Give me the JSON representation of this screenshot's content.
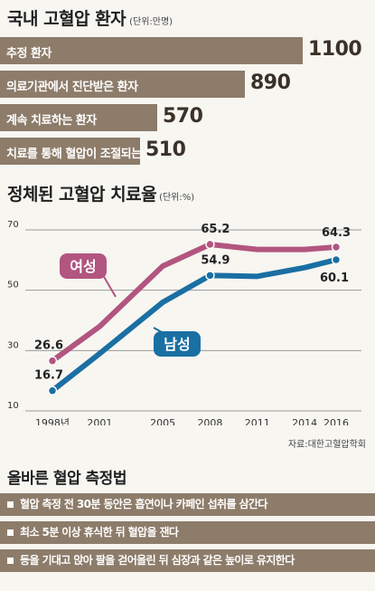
{
  "section1": {
    "title": "국내 고혈압 환자",
    "unit": "(단위:만명)",
    "bars": [
      {
        "label": "추정 환자",
        "value": 1100
      },
      {
        "label": "의료기관에서 진단받은 환자",
        "value": 890
      },
      {
        "label": "계속 치료하는 환자",
        "value": 570
      },
      {
        "label": "치료를 통해 혈압이 조절되는 환자",
        "value": 510
      }
    ],
    "bar_color": "#8d7c6a"
  },
  "section2": {
    "title": "정체된 고혈압 치료율",
    "unit": "(단위:%)",
    "source": "자료:대한고혈압학회"
  },
  "chart_data": [
    {
      "type": "bar",
      "title": "국내 고혈압 환자",
      "unit": "(단위:만명)",
      "categories": [
        "추정 환자",
        "의료기관에서 진단받은 환자",
        "계속 치료하는 환자",
        "치료를 통해 혈압이 조절되는 환자"
      ],
      "values": [
        1100,
        890,
        570,
        510
      ],
      "orientation": "horizontal"
    },
    {
      "type": "line",
      "title": "정체된 고혈압 치료율",
      "unit": "(단위:%)",
      "x": [
        "1998년",
        "2001",
        "2005",
        "2008",
        "2011",
        "2014",
        "2016"
      ],
      "x_numeric": [
        1998,
        2001,
        2005,
        2008,
        2011,
        2014,
        2016
      ],
      "yticks": [
        "10",
        "30",
        "50",
        "70"
      ],
      "ylim": [
        10,
        70
      ],
      "grid": true,
      "series": [
        {
          "name": "여성",
          "color": "#b2557f",
          "values": [
            26.6,
            38,
            58,
            65.2,
            63.5,
            63.5,
            64.3
          ],
          "labels": [
            {
              "index": 0,
              "text": "26.6"
            },
            {
              "index": 3,
              "text": "65.2"
            },
            {
              "index": 6,
              "text": "64.3"
            }
          ]
        },
        {
          "name": "남성",
          "color": "#1a6fa3",
          "values": [
            16.7,
            29,
            46,
            54.9,
            54.6,
            57.5,
            60.1
          ],
          "labels": [
            {
              "index": 0,
              "text": "16.7"
            },
            {
              "index": 3,
              "text": "54.9"
            },
            {
              "index": 6,
              "text": "60.1"
            }
          ]
        }
      ],
      "source": "자료:대한고혈압학회"
    }
  ],
  "section3": {
    "title": "올바른 혈압 측정법",
    "tips": [
      "혈압 측정 전 30분 동안은 흡연이나 카페인 섭취를 삼간다",
      "최소 5분 이상 휴식한 뒤 혈압을 잰다",
      "등을 기대고 앉아 팔을 걷어올린 뒤 심장과 같은 높이로 유지한다"
    ]
  }
}
